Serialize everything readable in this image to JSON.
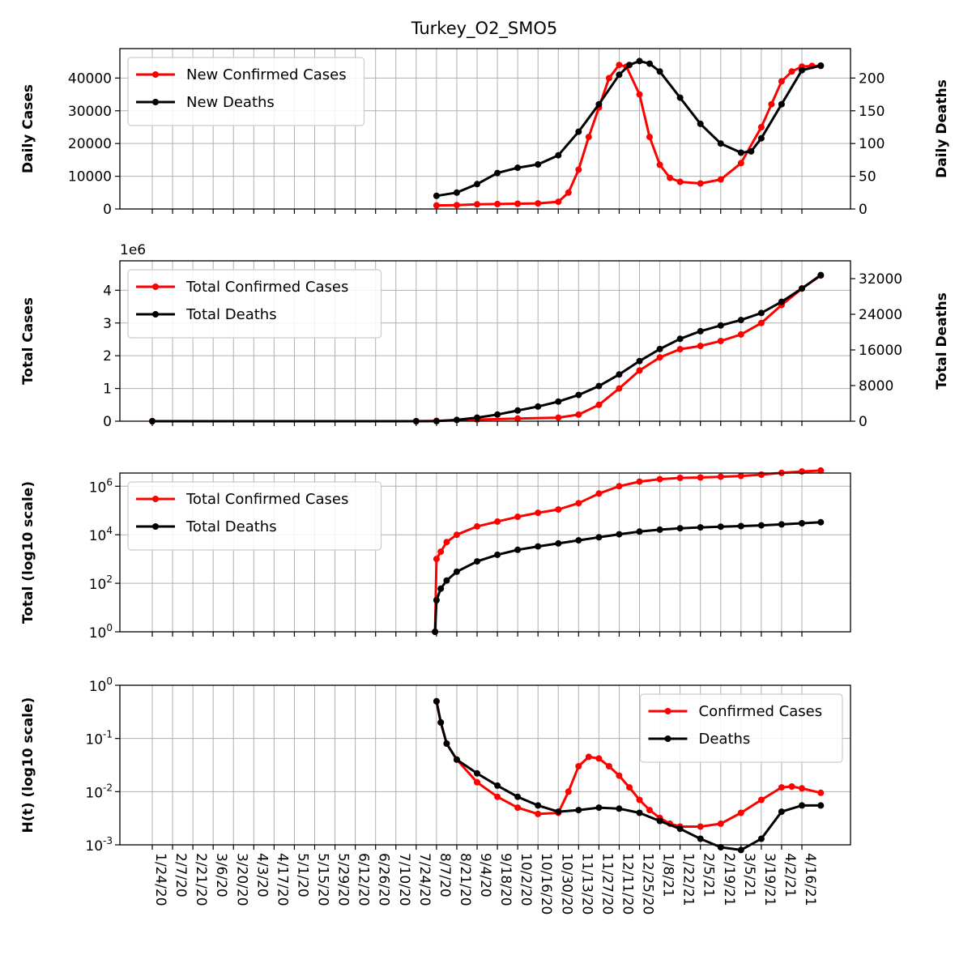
{
  "title": "Turkey_O2_SMO5",
  "dates": [
    "1/24/20",
    "2/7/20",
    "2/21/20",
    "3/6/20",
    "3/20/20",
    "4/3/20",
    "4/17/20",
    "5/1/20",
    "5/15/20",
    "5/29/20",
    "6/12/20",
    "6/26/20",
    "7/10/20",
    "7/24/20",
    "8/7/20",
    "8/21/20",
    "9/4/20",
    "9/18/20",
    "10/2/20",
    "10/16/20",
    "10/30/20",
    "11/13/20",
    "11/27/20",
    "12/11/20",
    "12/25/20",
    "1/8/21",
    "1/22/21",
    "2/5/21",
    "2/19/21",
    "3/5/21",
    "3/19/21",
    "4/2/21",
    "4/16/21"
  ],
  "colors": {
    "cases": "#ff0000",
    "deaths": "#000000",
    "grid": "#b0b0b0"
  },
  "chart_data": [
    {
      "type": "line",
      "ylabel": "Daily Cases",
      "ylabel_right": "Daily Deaths",
      "ylim": [
        0,
        49000
      ],
      "ylim_right": [
        0,
        245
      ],
      "yticks": [
        0,
        10000,
        20000,
        30000,
        40000
      ],
      "yticks_right": [
        0,
        50,
        100,
        150,
        200
      ],
      "grid": true,
      "legend_position": "upper-left",
      "series": [
        {
          "name": "New Confirmed Cases",
          "axis": "left",
          "color": "#ff0000",
          "x": [
            "8/7/20",
            "8/21/20",
            "9/4/20",
            "9/18/20",
            "10/2/20",
            "10/16/20",
            "10/30/20",
            "11/6/20",
            "11/13/20",
            "11/20/20",
            "11/27/20",
            "12/4/20",
            "12/11/20",
            "12/16/20",
            "12/25/20",
            "1/1/21",
            "1/8/21",
            "1/15/21",
            "1/22/21",
            "2/5/21",
            "2/19/21",
            "3/5/21",
            "3/19/21",
            "3/26/21",
            "4/2/21",
            "4/9/21",
            "4/16/21",
            "4/23/21",
            "4/29/21"
          ],
          "y": [
            1100,
            1200,
            1400,
            1500,
            1600,
            1700,
            2200,
            5000,
            12000,
            22000,
            31000,
            40000,
            44000,
            43500,
            35000,
            22000,
            13500,
            9500,
            8300,
            7800,
            9000,
            14000,
            25000,
            32000,
            39000,
            42000,
            43500,
            43700,
            43700
          ]
        },
        {
          "name": "New Deaths",
          "axis": "right",
          "color": "#000000",
          "x": [
            "8/7/20",
            "8/21/20",
            "9/4/20",
            "9/18/20",
            "10/2/20",
            "10/16/20",
            "10/30/20",
            "11/13/20",
            "11/27/20",
            "12/11/20",
            "12/18/20",
            "12/25/20",
            "1/1/21",
            "1/8/21",
            "1/22/21",
            "2/5/21",
            "2/19/21",
            "3/5/21",
            "3/12/21",
            "3/19/21",
            "4/2/21",
            "4/16/21",
            "4/29/21"
          ],
          "y": [
            20,
            25,
            38,
            55,
            63,
            68,
            82,
            118,
            160,
            205,
            220,
            226,
            222,
            210,
            170,
            130,
            100,
            86,
            88,
            108,
            160,
            212,
            219
          ]
        }
      ]
    },
    {
      "type": "line",
      "ylabel": "Total Cases",
      "ylabel_right": "Total Deaths",
      "y_offset_label": "1e6",
      "ylim": [
        0,
        4.9
      ],
      "ylim_right": [
        0,
        36000
      ],
      "yticks": [
        0,
        1,
        2,
        3,
        4
      ],
      "yticks_right": [
        0,
        8000,
        16000,
        24000,
        32000
      ],
      "grid": true,
      "legend_position": "upper-left",
      "series": [
        {
          "name": "Total Confirmed Cases",
          "axis": "left",
          "color": "#ff0000",
          "x": [
            "1/24/20",
            "7/24/20",
            "8/7/20",
            "9/4/20",
            "10/2/20",
            "10/30/20",
            "11/13/20",
            "11/27/20",
            "12/11/20",
            "12/25/20",
            "1/8/21",
            "1/22/21",
            "2/5/21",
            "2/19/21",
            "3/5/21",
            "3/19/21",
            "4/2/21",
            "4/16/21",
            "4/29/21"
          ],
          "y": [
            0,
            0,
            0.01,
            0.05,
            0.08,
            0.11,
            0.2,
            0.5,
            1.0,
            1.55,
            1.95,
            2.2,
            2.3,
            2.45,
            2.65,
            3.0,
            3.55,
            4.05,
            4.45
          ]
        },
        {
          "name": "Total Deaths",
          "axis": "right",
          "color": "#000000",
          "x": [
            "1/24/20",
            "7/24/20",
            "8/7/20",
            "8/21/20",
            "9/4/20",
            "9/18/20",
            "10/2/20",
            "10/16/20",
            "10/30/20",
            "11/13/20",
            "11/27/20",
            "12/11/20",
            "12/25/20",
            "1/8/21",
            "1/22/21",
            "2/5/21",
            "2/19/21",
            "3/5/21",
            "3/19/21",
            "4/2/21",
            "4/16/21",
            "4/29/21"
          ],
          "y": [
            0,
            0,
            20,
            300,
            800,
            1500,
            2400,
            3300,
            4400,
            5900,
            7900,
            10500,
            13500,
            16200,
            18500,
            20200,
            21500,
            22700,
            24300,
            26800,
            29800,
            32800
          ]
        }
      ]
    },
    {
      "type": "line",
      "ylabel": "Total (log10 scale)",
      "yscale": "log",
      "ylim": [
        1,
        3500000
      ],
      "yticks": [
        "10^0",
        "10^2",
        "10^4",
        "10^6"
      ],
      "grid": true,
      "legend_position": "upper-left",
      "series": [
        {
          "name": "Total Confirmed Cases",
          "color": "#ff0000",
          "x": [
            "8/6/20",
            "8/7/20",
            "8/10/20",
            "8/14/20",
            "8/21/20",
            "9/4/20",
            "9/18/20",
            "10/2/20",
            "10/16/20",
            "10/30/20",
            "11/13/20",
            "11/27/20",
            "12/11/20",
            "12/25/20",
            "1/8/21",
            "1/22/21",
            "2/5/21",
            "2/19/21",
            "3/5/21",
            "3/19/21",
            "4/2/21",
            "4/16/21",
            "4/29/21"
          ],
          "y": [
            1,
            1000,
            2000,
            5000,
            10000,
            22000,
            35000,
            55000,
            80000,
            110000,
            200000,
            500000,
            1000000,
            1550000,
            1950000,
            2200000,
            2300000,
            2450000,
            2650000,
            3000000,
            3550000,
            4050000,
            4450000
          ]
        },
        {
          "name": "Total Deaths",
          "color": "#000000",
          "x": [
            "8/6/20",
            "8/7/20",
            "8/10/20",
            "8/14/20",
            "8/21/20",
            "9/4/20",
            "9/18/20",
            "10/2/20",
            "10/16/20",
            "10/30/20",
            "11/13/20",
            "11/27/20",
            "12/11/20",
            "12/25/20",
            "1/8/21",
            "1/22/21",
            "2/5/21",
            "2/19/21",
            "3/5/21",
            "3/19/21",
            "4/2/21",
            "4/16/21",
            "4/29/21"
          ],
          "y": [
            1,
            20,
            60,
            130,
            300,
            800,
            1500,
            2400,
            3300,
            4400,
            5900,
            7900,
            10500,
            13500,
            16200,
            18500,
            20200,
            21500,
            22700,
            24300,
            26800,
            29800,
            32800
          ]
        }
      ]
    },
    {
      "type": "line",
      "ylabel": "H(t) (log10 scale)",
      "yscale": "log",
      "ylim": [
        0.001,
        1
      ],
      "yticks": [
        "10^-3",
        "10^-2",
        "10^-1",
        "10^0"
      ],
      "grid": true,
      "legend_position": "upper-right",
      "series": [
        {
          "name": "Confirmed Cases",
          "color": "#ff0000",
          "x": [
            "8/7/20",
            "8/10/20",
            "8/14/20",
            "8/21/20",
            "9/4/20",
            "9/18/20",
            "10/2/20",
            "10/16/20",
            "10/30/20",
            "11/6/20",
            "11/13/20",
            "11/20/20",
            "11/27/20",
            "12/4/20",
            "12/11/20",
            "12/18/20",
            "12/25/20",
            "1/1/21",
            "1/8/21",
            "1/15/21",
            "1/22/21",
            "2/5/21",
            "2/19/21",
            "3/5/21",
            "3/19/21",
            "4/2/21",
            "4/9/21",
            "4/16/21",
            "4/29/21"
          ],
          "y": [
            0.5,
            0.2,
            0.08,
            0.04,
            0.015,
            0.008,
            0.005,
            0.0038,
            0.004,
            0.01,
            0.03,
            0.045,
            0.042,
            0.03,
            0.02,
            0.012,
            0.007,
            0.0045,
            0.0032,
            0.0025,
            0.0022,
            0.0022,
            0.0025,
            0.004,
            0.007,
            0.012,
            0.0125,
            0.0115,
            0.0095
          ]
        },
        {
          "name": "Deaths",
          "color": "#000000",
          "x": [
            "8/7/20",
            "8/10/20",
            "8/14/20",
            "8/21/20",
            "9/4/20",
            "9/18/20",
            "10/2/20",
            "10/16/20",
            "10/30/20",
            "11/13/20",
            "11/27/20",
            "12/11/20",
            "12/25/20",
            "1/8/21",
            "1/22/21",
            "2/5/21",
            "2/19/21",
            "3/5/21",
            "3/19/21",
            "4/2/21",
            "4/16/21",
            "4/29/21"
          ],
          "y": [
            0.5,
            0.2,
            0.08,
            0.04,
            0.022,
            0.013,
            0.008,
            0.0055,
            0.0042,
            0.0045,
            0.005,
            0.0048,
            0.004,
            0.0028,
            0.002,
            0.0013,
            0.0009,
            0.0008,
            0.0013,
            0.0042,
            0.0055,
            0.0055
          ]
        }
      ]
    }
  ]
}
